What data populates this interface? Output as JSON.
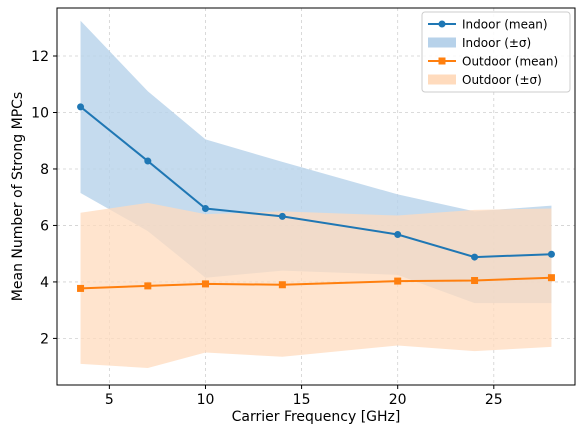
{
  "chart_data": {
    "type": "line",
    "xlabel": "Carrier Frequency [GHz]",
    "ylabel": "Mean Number of Strong MPCs",
    "xlim": [
      2.275,
      29.225
    ],
    "ylim": [
      0.35,
      13.7
    ],
    "xticks": [
      5,
      10,
      15,
      20,
      25
    ],
    "yticks": [
      2,
      4,
      6,
      8,
      10,
      12
    ],
    "grid": true,
    "legend_position": "top-right",
    "x": [
      3.5,
      7,
      10,
      14,
      20,
      24,
      28
    ],
    "series": [
      {
        "name": "Indoor (mean)",
        "band_name": "Indoor (±σ)",
        "color": "#1f77b4",
        "band_color": "#b7d2ea",
        "marker": "circle",
        "values": [
          10.2,
          8.28,
          6.6,
          6.32,
          5.68,
          4.88,
          4.98
        ],
        "upper": [
          13.25,
          10.75,
          9.05,
          8.25,
          7.1,
          6.5,
          6.7
        ],
        "lower": [
          7.15,
          5.8,
          4.15,
          4.4,
          4.25,
          3.25,
          3.25
        ]
      },
      {
        "name": "Outdoor (mean)",
        "band_name": "Outdoor (±σ)",
        "color": "#ff7f0e",
        "band_color": "#ffdbbd",
        "marker": "square",
        "values": [
          3.77,
          3.86,
          3.93,
          3.9,
          4.03,
          4.05,
          4.15
        ],
        "upper": [
          6.45,
          6.8,
          6.4,
          6.5,
          6.35,
          6.55,
          6.6
        ],
        "lower": [
          1.1,
          0.95,
          1.5,
          1.35,
          1.75,
          1.55,
          1.7
        ]
      }
    ]
  }
}
